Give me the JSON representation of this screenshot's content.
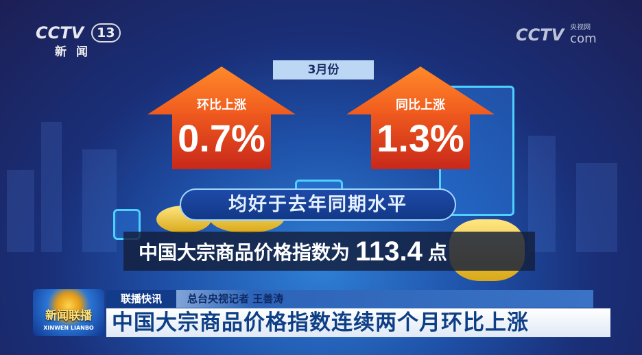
{
  "channel_logo": {
    "brand": "CCTV",
    "number": "13",
    "sub": "新闻"
  },
  "site_logo": {
    "brand": "CCTV",
    "small": "央视网",
    "domain": "com"
  },
  "graphic": {
    "month": "3月份",
    "mom": {
      "label": "环比上涨",
      "value": "0.7%"
    },
    "yoy": {
      "label": "同比上涨",
      "value": "1.3%"
    },
    "banner": "均好于去年同期水平",
    "index_text": "中国大宗商品价格指数为",
    "index_value": "113.4",
    "index_unit": "点",
    "colors": {
      "arrow": "#f05a1e",
      "banner": "#1e4aa8"
    }
  },
  "lower_third": {
    "program_logo": "新闻联播",
    "program_logo_en": "XINWEN LIANBO",
    "segment": "联播快讯",
    "reporter": "总台央视记者 王善涛",
    "headline": "中国大宗商品价格指数连续两个月环比上涨"
  }
}
